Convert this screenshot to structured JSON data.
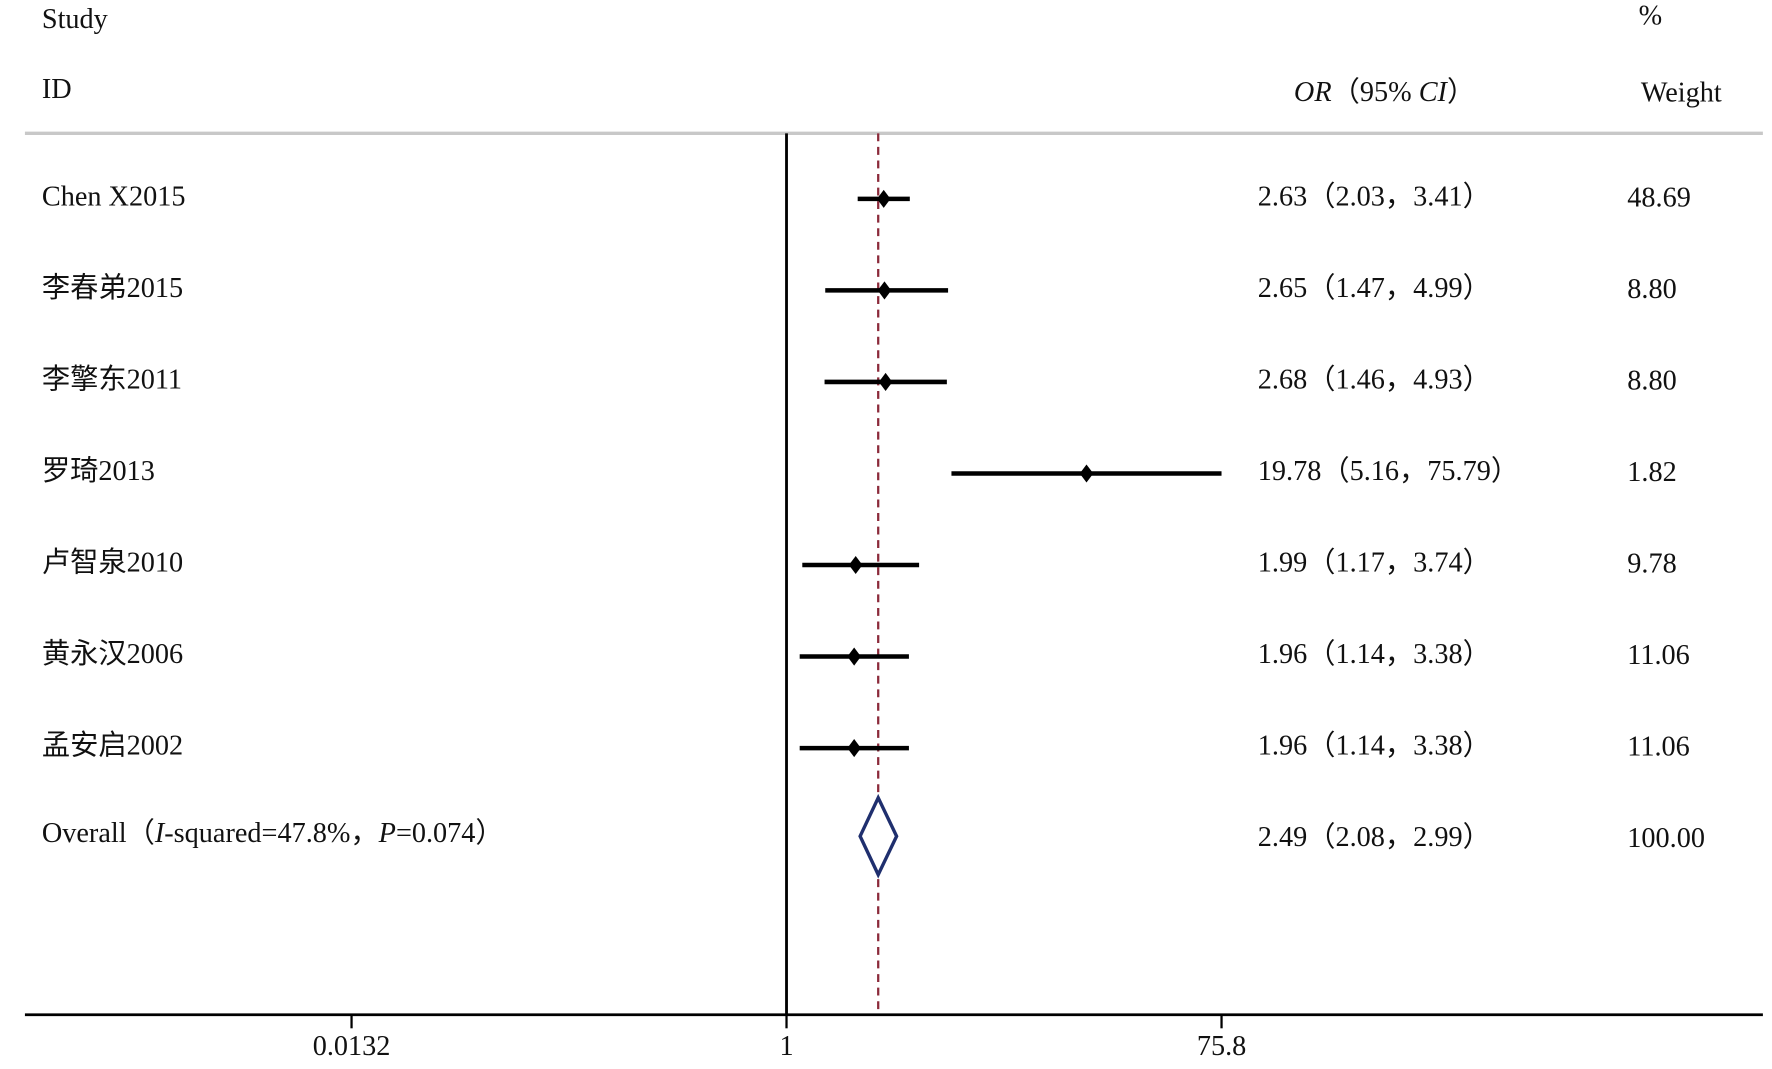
{
  "chart_data": {
    "type": "forest",
    "header": {
      "study": "Study",
      "id": "ID",
      "or": "OR",
      "ci_open": "（95% ",
      "ci": "CI",
      "ci_close": "）",
      "percent": "%",
      "weight": "Weight"
    },
    "categories": [
      "Chen X2015",
      "李春弟2015",
      "李擎东2011",
      "罗琦2013",
      "卢智泉2010",
      "黄永汉2006",
      "孟安启2002"
    ],
    "series": [
      {
        "values": [
          2.63,
          2.65,
          2.68,
          19.78,
          1.99,
          1.96,
          1.96
        ],
        "lower": [
          2.03,
          1.47,
          1.46,
          5.16,
          1.17,
          1.14,
          1.14
        ],
        "upper": [
          3.41,
          4.99,
          4.93,
          75.79,
          3.74,
          3.38,
          3.38
        ],
        "value_labels": [
          "2.63（2.03，3.41）",
          "2.65（1.47，4.99）",
          "2.68（1.46，4.93）",
          "19.78（5.16，75.79）",
          "1.99（1.17，3.74）",
          "1.96（1.14，3.38）",
          "1.96（1.14，3.38）"
        ],
        "weights": [
          "48.69",
          "8.80",
          "8.80",
          "1.82",
          "9.78",
          "11.06",
          "11.06"
        ],
        "color": "#000000"
      }
    ],
    "overall": {
      "label_parts": [
        "Overall（",
        "I",
        "-squared=47.8%，",
        "P",
        "=0.074）"
      ],
      "value": 2.49,
      "lower": 2.08,
      "upper": 2.99,
      "value_label": "2.49（2.08，2.99）",
      "weight": "100.00",
      "color": "#1f2f6e",
      "line_color": "#8b2a3a"
    },
    "xscale": "log",
    "xlim": [
      0.000512,
      16550
    ],
    "xticks": [
      0.0132,
      1,
      75.8
    ],
    "null_value": 1
  }
}
